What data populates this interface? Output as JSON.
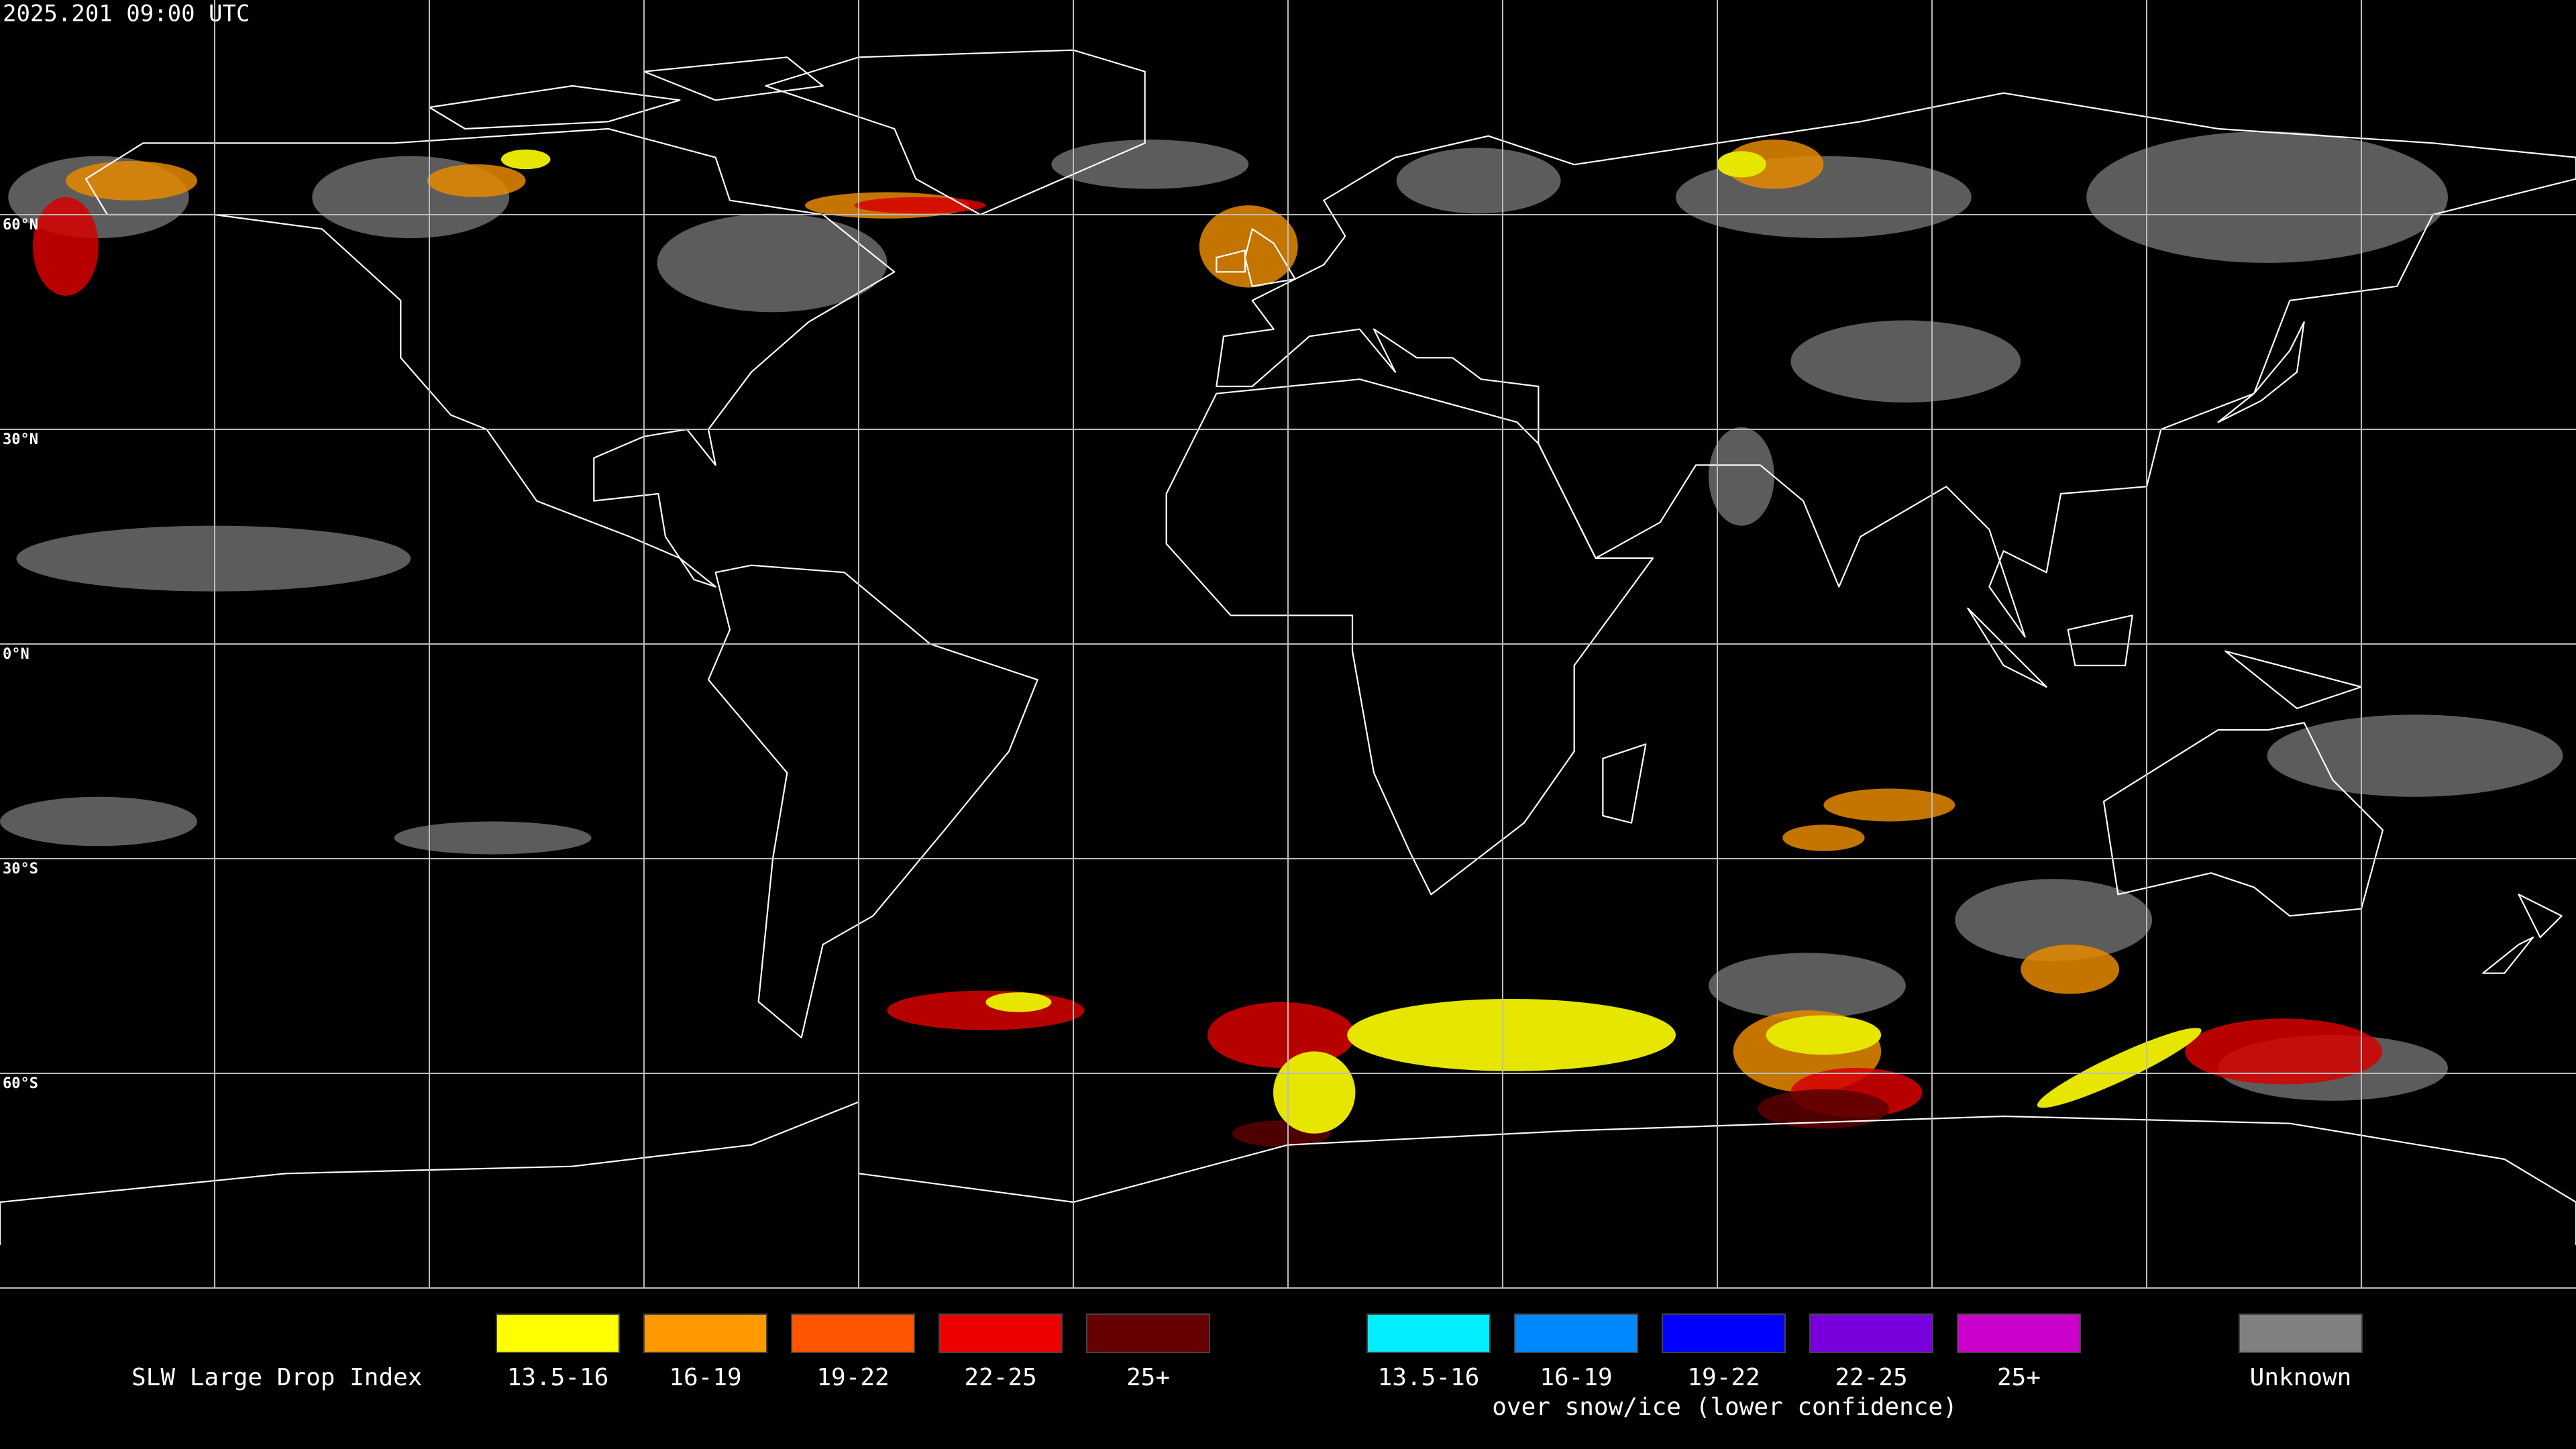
{
  "timestamp": "2025.201 09:00 UTC",
  "latitude_labels": [
    "60°N",
    "30°N",
    "0°N",
    "30°S",
    "60°S"
  ],
  "legend": {
    "title": "SLW Large Drop Index",
    "items": [
      {
        "label": "13.5-16",
        "color": "#ffff00"
      },
      {
        "label": "16-19",
        "color": "#ff9900"
      },
      {
        "label": "19-22",
        "color": "#ff5500"
      },
      {
        "label": "22-25",
        "color": "#ee0000"
      },
      {
        "label": "25+",
        "color": "#660000"
      }
    ],
    "snow_items": [
      {
        "label": "13.5-16",
        "color": "#00eeff"
      },
      {
        "label": "16-19",
        "color": "#0088ff"
      },
      {
        "label": "19-22",
        "color": "#0000ff"
      },
      {
        "label": "22-25",
        "color": "#7700dd"
      },
      {
        "label": "25+",
        "color": "#cc00cc"
      }
    ],
    "snow_caption": "over snow/ice (lower confidence)",
    "unknown": {
      "label": "Unknown",
      "color": "#808080"
    }
  }
}
